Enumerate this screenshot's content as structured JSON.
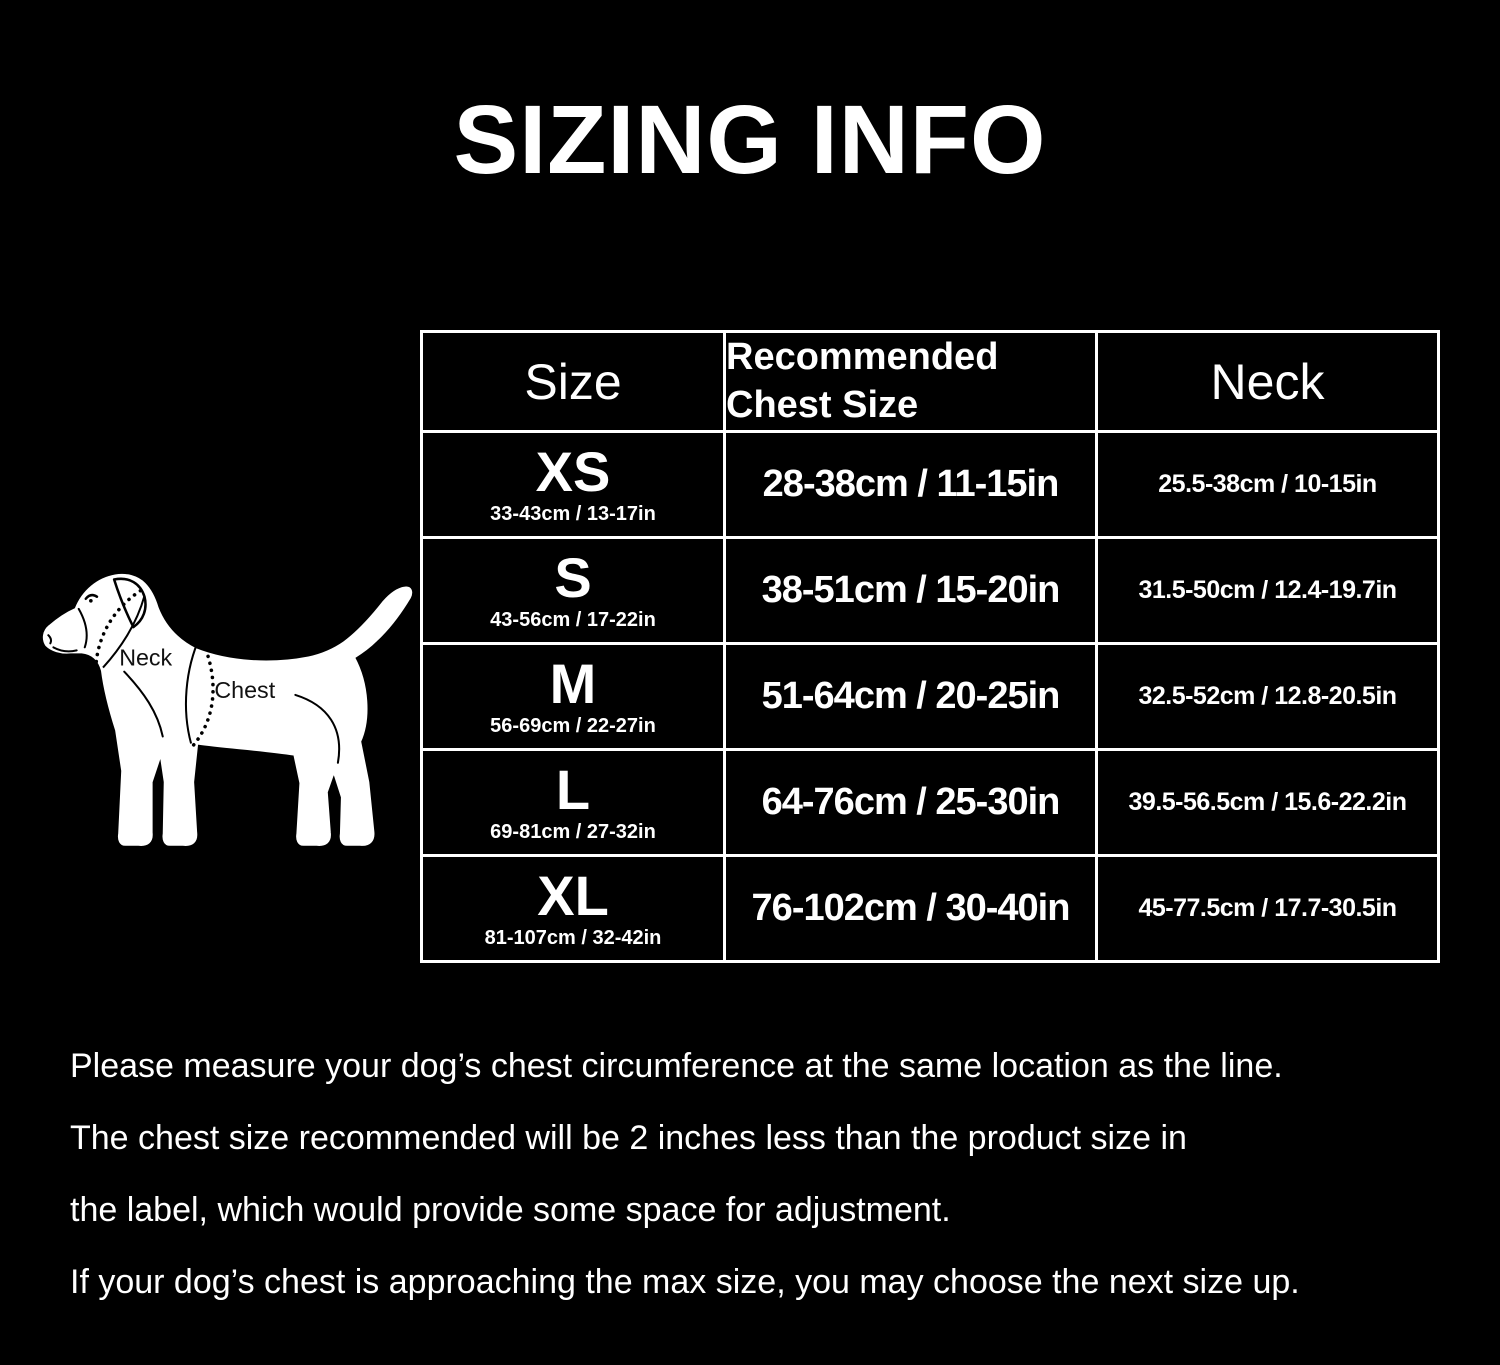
{
  "title": "SIZING INFO",
  "diagram": {
    "neck_label": "Neck",
    "chest_label": "Chest"
  },
  "table": {
    "headers": [
      "Size",
      "Recommended Chest Size",
      "Neck"
    ],
    "rows": [
      {
        "size": "XS",
        "size_sub": "33-43cm / 13-17in",
        "chest": "28-38cm / 11-15in",
        "neck": "25.5-38cm / 10-15in"
      },
      {
        "size": "S",
        "size_sub": "43-56cm / 17-22in",
        "chest": "38-51cm / 15-20in",
        "neck": "31.5-50cm / 12.4-19.7in"
      },
      {
        "size": "M",
        "size_sub": "56-69cm / 22-27in",
        "chest": "51-64cm / 20-25in",
        "neck": "32.5-52cm / 12.8-20.5in"
      },
      {
        "size": "L",
        "size_sub": "69-81cm / 27-32in",
        "chest": "64-76cm / 25-30in",
        "neck": "39.5-56.5cm / 15.6-22.2in"
      },
      {
        "size": "XL",
        "size_sub": "81-107cm / 32-42in",
        "chest": "76-102cm / 30-40in",
        "neck": "45-77.5cm / 17.7-30.5in"
      }
    ]
  },
  "notes": [
    "Please measure your dog’s chest circumference at the same location as the line.",
    "The chest size recommended will be 2 inches less than the product size in",
    "the label, which would provide some space for adjustment.",
    "If your dog’s chest is approaching the max size, you may choose the next size up."
  ],
  "colors": {
    "background": "#000000",
    "text": "#ffffff",
    "border": "#ffffff"
  }
}
